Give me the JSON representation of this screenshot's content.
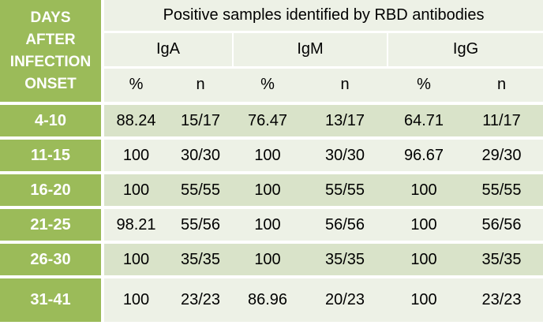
{
  "header": {
    "days_label_lines": [
      "DAYS",
      "AFTER",
      "INFECTION",
      "ONSET"
    ],
    "title": "Positive samples identified by RBD antibodies",
    "antibodies": [
      "IgA",
      "IgM",
      "IgG"
    ],
    "sub_labels": [
      "%",
      "n",
      "%",
      "n",
      "%",
      "n"
    ]
  },
  "rows": [
    {
      "days": "4-10",
      "iga_pct": "88.24",
      "iga_n": "15/17",
      "igm_pct": "76.47",
      "igm_n": "13/17",
      "igg_pct": "64.71",
      "igg_n": "11/17"
    },
    {
      "days": "11-15",
      "iga_pct": "100",
      "iga_n": "30/30",
      "igm_pct": "100",
      "igm_n": "30/30",
      "igg_pct": "96.67",
      "igg_n": "29/30"
    },
    {
      "days": "16-20",
      "iga_pct": "100",
      "iga_n": "55/55",
      "igm_pct": "100",
      "igm_n": "55/55",
      "igg_pct": "100",
      "igg_n": "55/55"
    },
    {
      "days": "21-25",
      "iga_pct": "98.21",
      "iga_n": "55/56",
      "igm_pct": "100",
      "igm_n": "56/56",
      "igg_pct": "100",
      "igg_n": "56/56"
    },
    {
      "days": "26-30",
      "iga_pct": "100",
      "iga_n": "35/35",
      "igm_pct": "100",
      "igm_n": "35/35",
      "igg_pct": "100",
      "igg_n": "35/35"
    },
    {
      "days": "31-41",
      "iga_pct": "100",
      "iga_n": "23/23",
      "igm_pct": "86.96",
      "igm_n": "20/23",
      "igg_pct": "100",
      "igg_n": "23/23"
    }
  ],
  "colors": {
    "days_column": "#9bbb59",
    "row_dark": "#d9e3c9",
    "row_light": "#edf1e6",
    "text_header": "#ffffff",
    "text_body": "#000000"
  }
}
